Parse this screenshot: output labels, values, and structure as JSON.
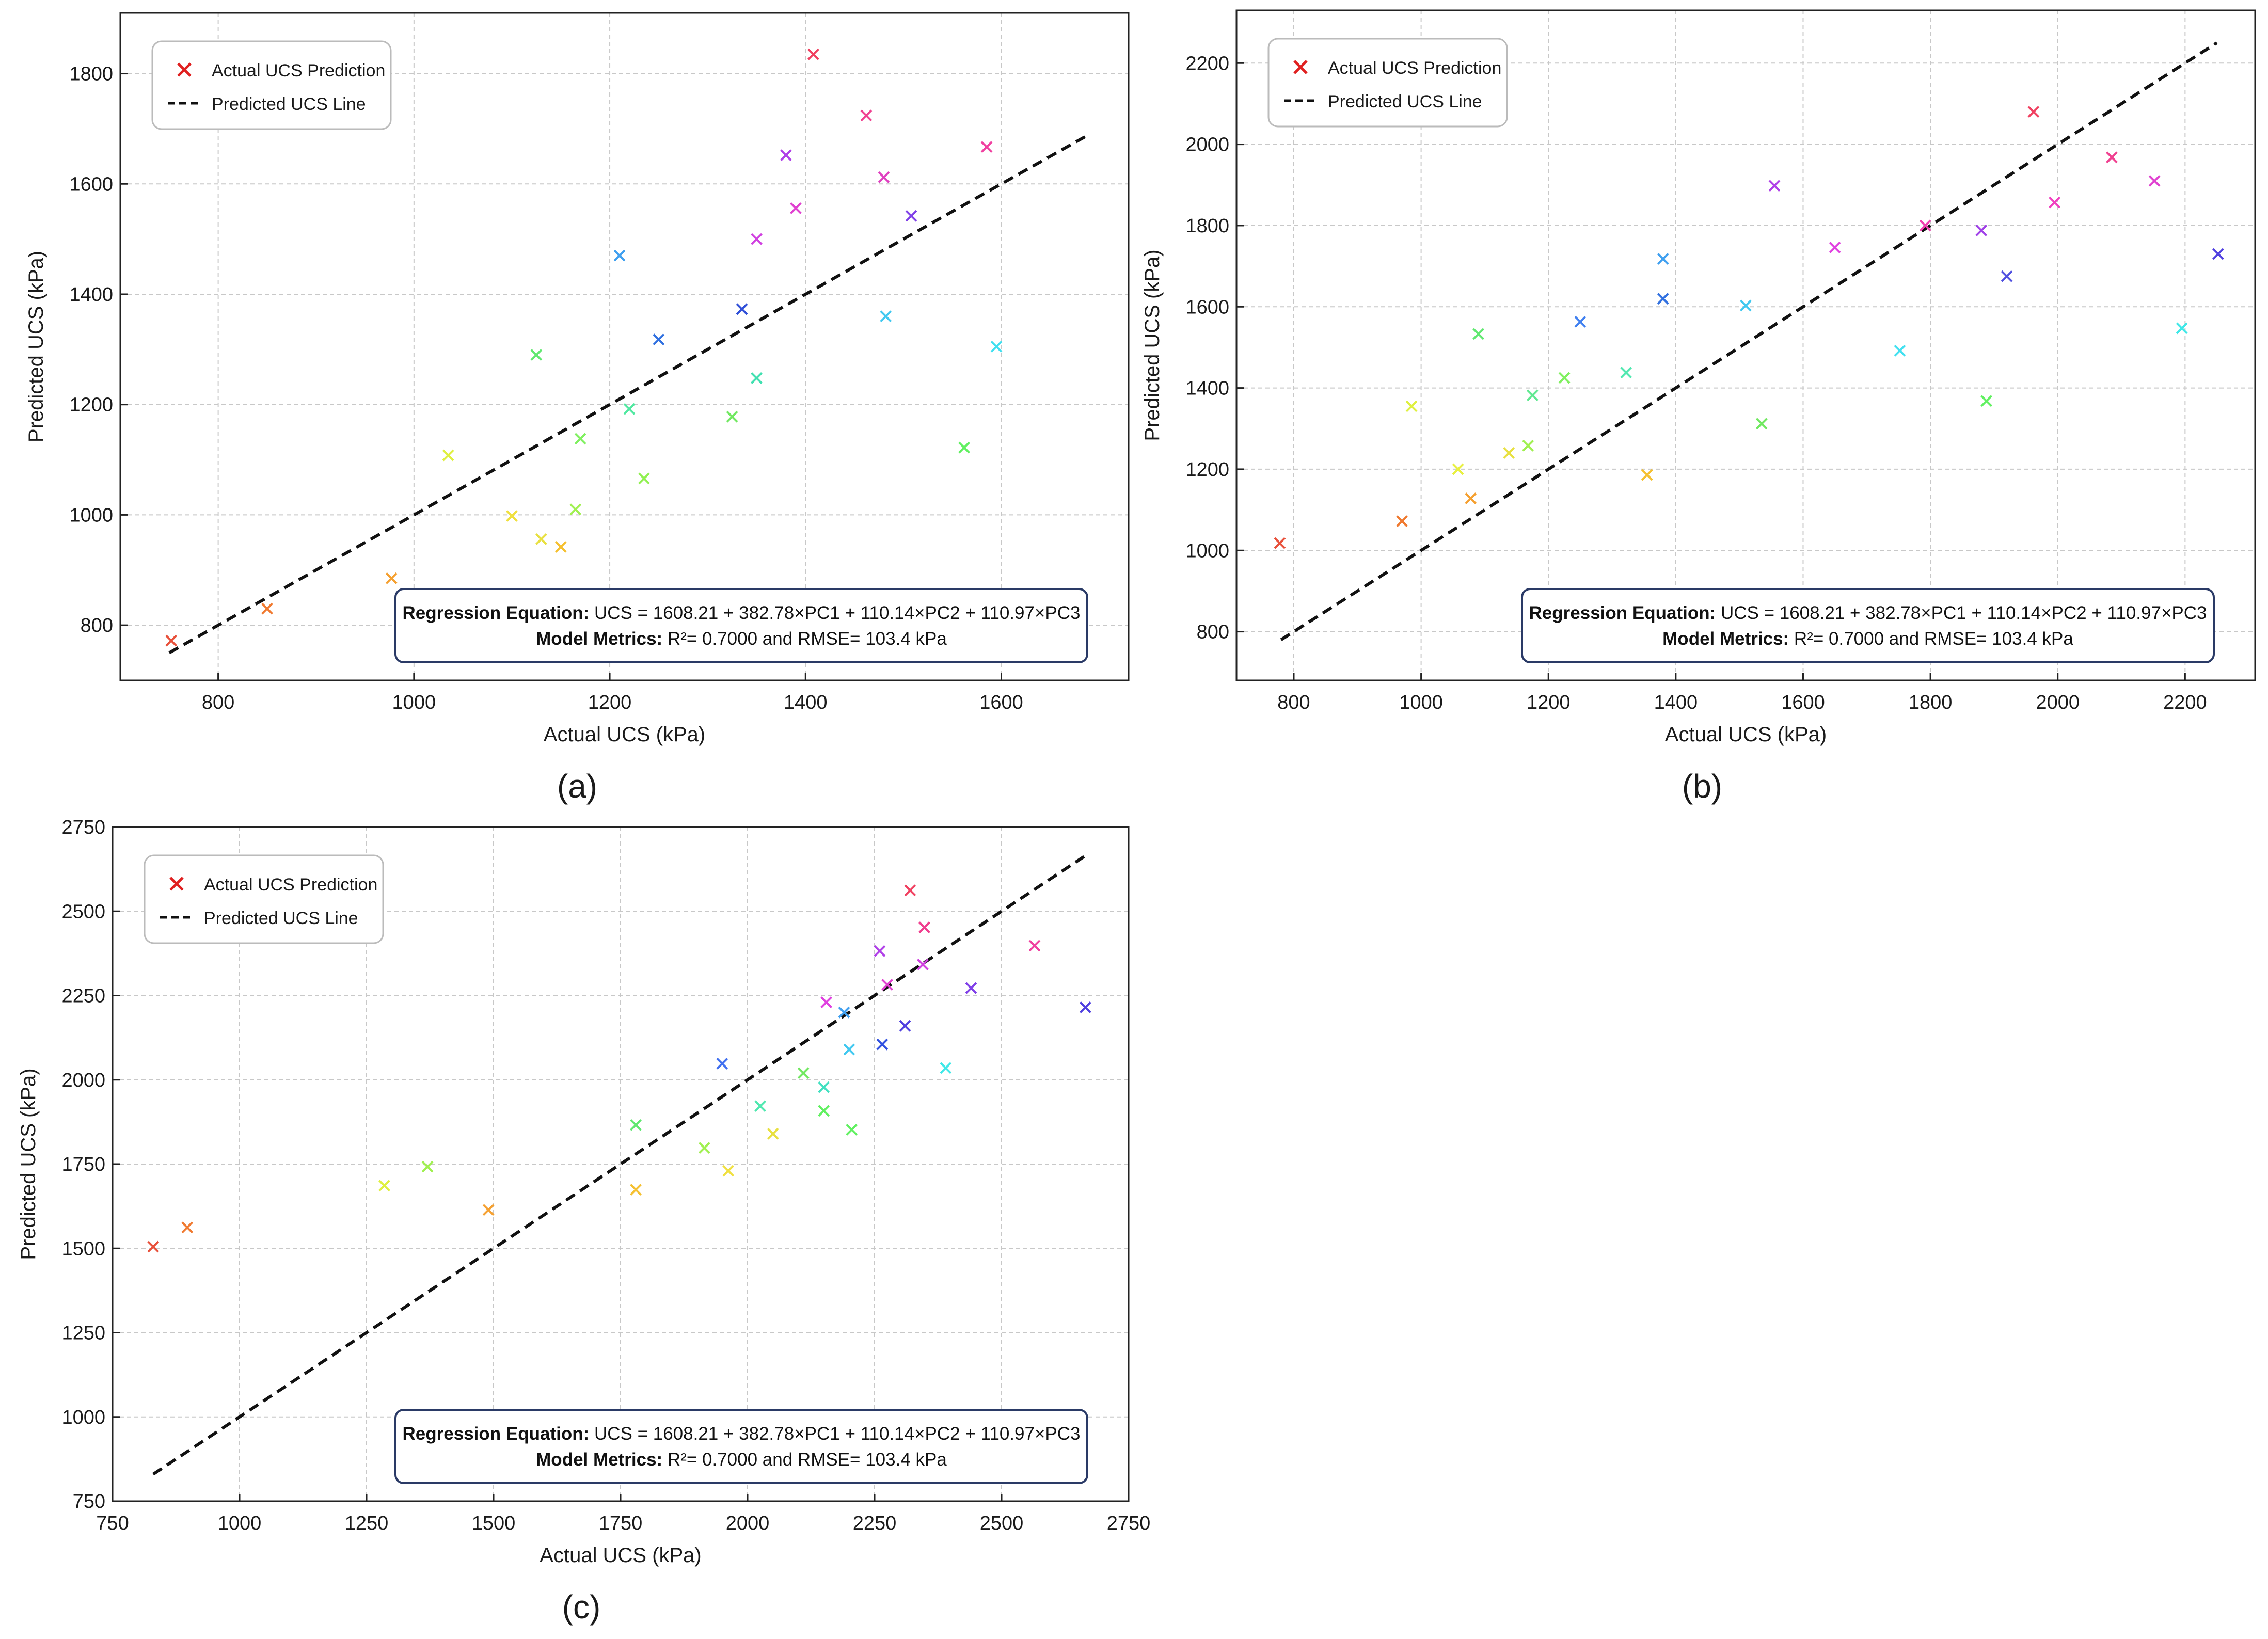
{
  "chart_data": [
    {
      "type": "scatter",
      "panel_label": "(a)",
      "xlabel": "Actual UCS (kPa)",
      "ylabel": "Predicted UCS (kPa)",
      "xlim": [
        700,
        1730
      ],
      "ylim": [
        700,
        1910
      ],
      "xticks": [
        800,
        1000,
        1200,
        1400,
        1600
      ],
      "yticks": [
        800,
        1000,
        1200,
        1400,
        1600,
        1800
      ],
      "legend": {
        "placement": "top-left",
        "scatter_label": "Actual UCS Prediction",
        "line_label": "Predicted UCS Line"
      },
      "line": {
        "x": [
          750,
          1690
        ],
        "y": [
          750,
          1690
        ]
      },
      "annotation": {
        "equation_label": "Regression Equation:",
        "equation": "UCS = 1608.21 + 382.78×PC1 + 110.14×PC2 + 110.97×PC3",
        "metrics_label": "Model Metrics:",
        "metrics": "R²= 0.7000 and RMSE= 103.4 kPa"
      },
      "points": [
        {
          "x": 752,
          "y": 772,
          "color": "#e8503a"
        },
        {
          "x": 850,
          "y": 830,
          "color": "#f07a30"
        },
        {
          "x": 977,
          "y": 885,
          "color": "#f5a030"
        },
        {
          "x": 1035,
          "y": 1108,
          "color": "#dff040"
        },
        {
          "x": 1100,
          "y": 998,
          "color": "#f0e040"
        },
        {
          "x": 1130,
          "y": 956,
          "color": "#e8e040"
        },
        {
          "x": 1150,
          "y": 942,
          "color": "#f5c030"
        },
        {
          "x": 1125,
          "y": 1290,
          "color": "#60e870"
        },
        {
          "x": 1165,
          "y": 1010,
          "color": "#a0f050"
        },
        {
          "x": 1170,
          "y": 1138,
          "color": "#80f060"
        },
        {
          "x": 1220,
          "y": 1192,
          "color": "#50e8a0"
        },
        {
          "x": 1235,
          "y": 1066,
          "color": "#90f050"
        },
        {
          "x": 1210,
          "y": 1470,
          "color": "#40a0f0"
        },
        {
          "x": 1250,
          "y": 1318,
          "color": "#3070e0"
        },
        {
          "x": 1325,
          "y": 1178,
          "color": "#70e860"
        },
        {
          "x": 1335,
          "y": 1373,
          "color": "#3050d8"
        },
        {
          "x": 1350,
          "y": 1248,
          "color": "#40e0b0"
        },
        {
          "x": 1350,
          "y": 1500,
          "color": "#d040e0"
        },
        {
          "x": 1380,
          "y": 1652,
          "color": "#b040e8"
        },
        {
          "x": 1390,
          "y": 1556,
          "color": "#e040d0"
        },
        {
          "x": 1408,
          "y": 1835,
          "color": "#f04060"
        },
        {
          "x": 1462,
          "y": 1724,
          "color": "#f04090"
        },
        {
          "x": 1480,
          "y": 1612,
          "color": "#e040c0"
        },
        {
          "x": 1482,
          "y": 1360,
          "color": "#40c8f0"
        },
        {
          "x": 1508,
          "y": 1542,
          "color": "#8040e8"
        },
        {
          "x": 1562,
          "y": 1122,
          "color": "#60f060"
        },
        {
          "x": 1585,
          "y": 1667,
          "color": "#f040a0"
        },
        {
          "x": 1595,
          "y": 1305,
          "color": "#40e0f0"
        }
      ]
    },
    {
      "type": "scatter",
      "panel_label": "(b)",
      "xlabel": "Actual UCS (kPa)",
      "ylabel": "Predicted UCS (kPa)",
      "xlim": [
        710,
        2310
      ],
      "ylim": [
        680,
        2330
      ],
      "xticks": [
        800,
        1000,
        1200,
        1400,
        1600,
        1800,
        2000,
        2200
      ],
      "yticks": [
        800,
        1000,
        1200,
        1400,
        1600,
        1800,
        2000,
        2200
      ],
      "legend": {
        "placement": "top-left",
        "scatter_label": "Actual UCS Prediction",
        "line_label": "Predicted UCS Line"
      },
      "line": {
        "x": [
          780,
          2250
        ],
        "y": [
          780,
          2250
        ]
      },
      "annotation": {
        "equation_label": "Regression Equation:",
        "equation": "UCS = 1608.21 + 382.78×PC1 + 110.14×PC2 + 110.97×PC3",
        "metrics_label": "Model Metrics:",
        "metrics": "R²= 0.7000 and RMSE= 103.4 kPa"
      },
      "points": [
        {
          "x": 778,
          "y": 1018,
          "color": "#e8503a"
        },
        {
          "x": 970,
          "y": 1072,
          "color": "#f07a30"
        },
        {
          "x": 985,
          "y": 1355,
          "color": "#dff040"
        },
        {
          "x": 1058,
          "y": 1200,
          "color": "#e8f040"
        },
        {
          "x": 1078,
          "y": 1128,
          "color": "#f5a030"
        },
        {
          "x": 1090,
          "y": 1533,
          "color": "#60e870"
        },
        {
          "x": 1138,
          "y": 1240,
          "color": "#e8e040"
        },
        {
          "x": 1168,
          "y": 1258,
          "color": "#a0f050"
        },
        {
          "x": 1175,
          "y": 1382,
          "color": "#60e890"
        },
        {
          "x": 1225,
          "y": 1425,
          "color": "#80f060"
        },
        {
          "x": 1250,
          "y": 1563,
          "color": "#4080f0"
        },
        {
          "x": 1322,
          "y": 1438,
          "color": "#50e8b0"
        },
        {
          "x": 1355,
          "y": 1186,
          "color": "#f5c030"
        },
        {
          "x": 1380,
          "y": 1718,
          "color": "#40a0f0"
        },
        {
          "x": 1380,
          "y": 1620,
          "color": "#3070e0"
        },
        {
          "x": 1510,
          "y": 1603,
          "color": "#40c8f0"
        },
        {
          "x": 1535,
          "y": 1312,
          "color": "#70e860"
        },
        {
          "x": 1555,
          "y": 1898,
          "color": "#b040e8"
        },
        {
          "x": 1650,
          "y": 1746,
          "color": "#e040e0"
        },
        {
          "x": 1752,
          "y": 1492,
          "color": "#40e0f0"
        },
        {
          "x": 1792,
          "y": 1800,
          "color": "#f040b0"
        },
        {
          "x": 1880,
          "y": 1788,
          "color": "#a040e8"
        },
        {
          "x": 1888,
          "y": 1368,
          "color": "#60f060"
        },
        {
          "x": 1920,
          "y": 1675,
          "color": "#5050e0"
        },
        {
          "x": 1962,
          "y": 2080,
          "color": "#f04060"
        },
        {
          "x": 1995,
          "y": 1857,
          "color": "#f040c0"
        },
        {
          "x": 2085,
          "y": 1968,
          "color": "#f04090"
        },
        {
          "x": 2152,
          "y": 1910,
          "color": "#e040d0"
        },
        {
          "x": 2195,
          "y": 1547,
          "color": "#40e8e8"
        },
        {
          "x": 2252,
          "y": 1730,
          "color": "#5040e0"
        }
      ]
    },
    {
      "type": "scatter",
      "panel_label": "(c)",
      "xlabel": "Actual UCS (kPa)",
      "ylabel": "Predicted UCS (kPa)",
      "xlim": [
        750,
        2750
      ],
      "ylim": [
        750,
        2750
      ],
      "xticks": [
        750,
        1000,
        1250,
        1500,
        1750,
        2000,
        2250,
        2500,
        2750
      ],
      "yticks": [
        750,
        1000,
        1250,
        1500,
        1750,
        2000,
        2250,
        2500,
        2750
      ],
      "legend": {
        "placement": "top-left",
        "scatter_label": "Actual UCS Prediction",
        "line_label": "Predicted UCS Line"
      },
      "line": {
        "x": [
          830,
          2670
        ],
        "y": [
          830,
          2670
        ]
      },
      "annotation": {
        "equation_label": "Regression Equation:",
        "equation": "UCS = 1608.21 + 382.78×PC1 + 110.14×PC2 + 110.97×PC3",
        "metrics_label": "Model Metrics:",
        "metrics": "R²= 0.7000 and RMSE= 103.4 kPa"
      },
      "points": [
        {
          "x": 830,
          "y": 1505,
          "color": "#e8503a"
        },
        {
          "x": 897,
          "y": 1562,
          "color": "#f07a30"
        },
        {
          "x": 1285,
          "y": 1686,
          "color": "#dff040"
        },
        {
          "x": 1370,
          "y": 1742,
          "color": "#a0f050"
        },
        {
          "x": 1490,
          "y": 1614,
          "color": "#f5a030"
        },
        {
          "x": 1780,
          "y": 1866,
          "color": "#60e870"
        },
        {
          "x": 1780,
          "y": 1674,
          "color": "#f5c030"
        },
        {
          "x": 1915,
          "y": 1798,
          "color": "#a0f050"
        },
        {
          "x": 1950,
          "y": 2048,
          "color": "#4070f0"
        },
        {
          "x": 1962,
          "y": 1730,
          "color": "#f0e040"
        },
        {
          "x": 2025,
          "y": 1922,
          "color": "#50e8b0"
        },
        {
          "x": 2050,
          "y": 1840,
          "color": "#e8e040"
        },
        {
          "x": 2110,
          "y": 2020,
          "color": "#70e860"
        },
        {
          "x": 2150,
          "y": 1978,
          "color": "#40e0c0"
        },
        {
          "x": 2150,
          "y": 1908,
          "color": "#60f060"
        },
        {
          "x": 2155,
          "y": 2230,
          "color": "#e040e0"
        },
        {
          "x": 2190,
          "y": 2200,
          "color": "#40a0f0"
        },
        {
          "x": 2200,
          "y": 2090,
          "color": "#40c8f0"
        },
        {
          "x": 2205,
          "y": 1852,
          "color": "#60f060"
        },
        {
          "x": 2260,
          "y": 2382,
          "color": "#b040e8"
        },
        {
          "x": 2265,
          "y": 2105,
          "color": "#3050e0"
        },
        {
          "x": 2275,
          "y": 2282,
          "color": "#e040d0"
        },
        {
          "x": 2310,
          "y": 2160,
          "color": "#5040e0"
        },
        {
          "x": 2320,
          "y": 2562,
          "color": "#f04060"
        },
        {
          "x": 2345,
          "y": 2342,
          "color": "#d040e0"
        },
        {
          "x": 2348,
          "y": 2452,
          "color": "#f04090"
        },
        {
          "x": 2390,
          "y": 2035,
          "color": "#40e8e8"
        },
        {
          "x": 2440,
          "y": 2272,
          "color": "#8040e8"
        },
        {
          "x": 2565,
          "y": 2398,
          "color": "#f040a0"
        },
        {
          "x": 2665,
          "y": 2215,
          "color": "#5040e0"
        }
      ]
    }
  ]
}
